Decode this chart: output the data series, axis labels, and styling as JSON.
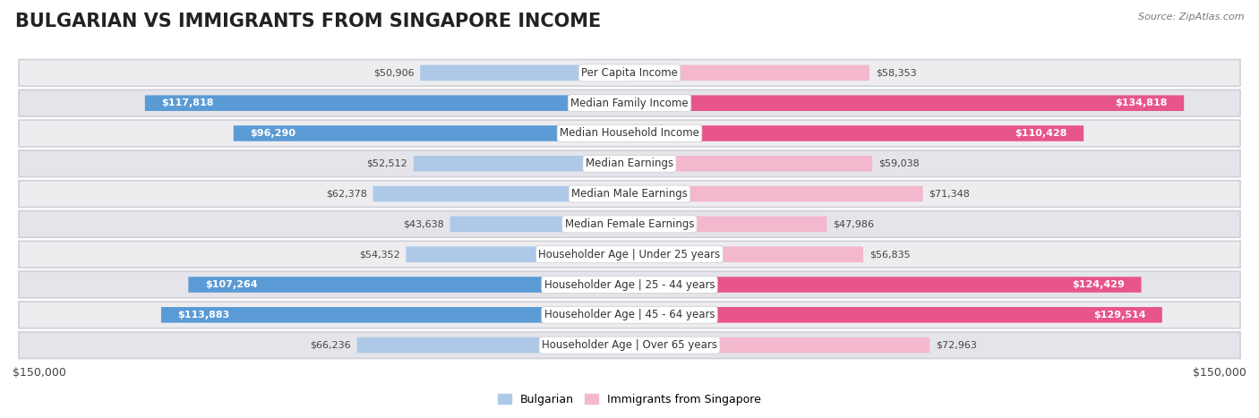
{
  "title": "BULGARIAN VS IMMIGRANTS FROM SINGAPORE INCOME",
  "source": "Source: ZipAtlas.com",
  "categories": [
    "Per Capita Income",
    "Median Family Income",
    "Median Household Income",
    "Median Earnings",
    "Median Male Earnings",
    "Median Female Earnings",
    "Householder Age | Under 25 years",
    "Householder Age | 25 - 44 years",
    "Householder Age | 45 - 64 years",
    "Householder Age | Over 65 years"
  ],
  "bulgarian_values": [
    50906,
    117818,
    96290,
    52512,
    62378,
    43638,
    54352,
    107264,
    113883,
    66236
  ],
  "singapore_values": [
    58353,
    134818,
    110428,
    59038,
    71348,
    47986,
    56835,
    124429,
    129514,
    72963
  ],
  "bulgarian_color_light": "#aec9e8",
  "bulgarian_color_dark": "#5b9bd5",
  "singapore_color_light": "#f4b8ce",
  "singapore_color_dark": "#e8558a",
  "dark_threshold": 80000,
  "max_value": 150000,
  "bg_color": "#ffffff",
  "row_bg_color": "#f0f0f5",
  "legend_bulgarian": "Bulgarian",
  "legend_singapore": "Immigrants from Singapore",
  "title_fontsize": 15,
  "label_fontsize": 8.5,
  "value_fontsize": 8.0,
  "axis_label": "$150,000"
}
